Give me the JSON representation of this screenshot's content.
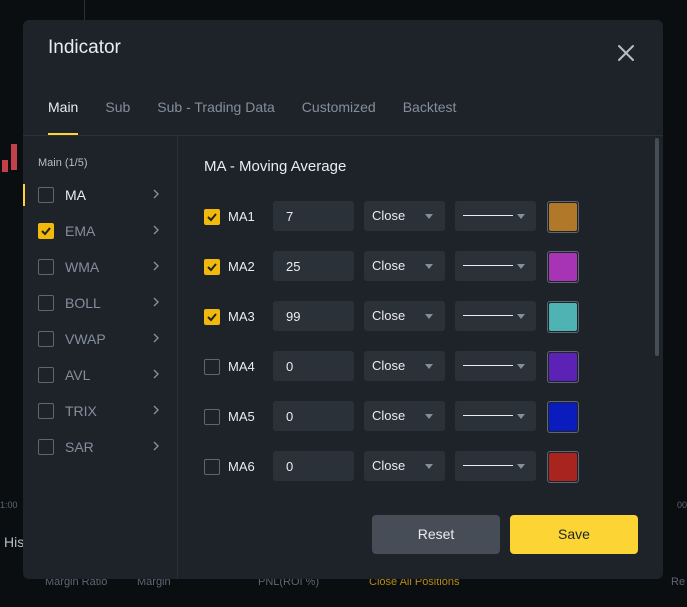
{
  "background": {
    "time_left": "1:00",
    "time_right": "00",
    "his_label": "His",
    "footer": {
      "margin_ratio": "Margin Ratio",
      "margin": "Margin",
      "pnl": "PNL(ROI %)",
      "close_all": "Close All Positions",
      "re": "Re"
    }
  },
  "modal": {
    "title": "Indicator",
    "close_icon": "close-icon"
  },
  "tabs": [
    {
      "label": "Main"
    },
    {
      "label": "Sub"
    },
    {
      "label": "Sub - Trading Data"
    },
    {
      "label": "Customized"
    },
    {
      "label": "Backtest"
    }
  ],
  "indicator_list": {
    "group_label": "Main (1/5)",
    "items": [
      {
        "label": "MA",
        "checked": false,
        "active": true
      },
      {
        "label": "EMA",
        "checked": true,
        "active": false
      },
      {
        "label": "WMA",
        "checked": false,
        "active": false
      },
      {
        "label": "BOLL",
        "checked": false,
        "active": false
      },
      {
        "label": "VWAP",
        "checked": false,
        "active": false
      },
      {
        "label": "AVL",
        "checked": false,
        "active": false
      },
      {
        "label": "TRIX",
        "checked": false,
        "active": false
      },
      {
        "label": "SAR",
        "checked": false,
        "active": false
      }
    ]
  },
  "settings": {
    "title": "MA - Moving Average",
    "rows": [
      {
        "name": "MA1",
        "checked": true,
        "period": "7",
        "source": "Close",
        "color": "#b07828"
      },
      {
        "name": "MA2",
        "checked": true,
        "period": "25",
        "source": "Close",
        "color": "#a634b4"
      },
      {
        "name": "MA3",
        "checked": true,
        "period": "99",
        "source": "Close",
        "color": "#4fb3b3"
      },
      {
        "name": "MA4",
        "checked": false,
        "period": "0",
        "source": "Close",
        "color": "#5c22b6"
      },
      {
        "name": "MA5",
        "checked": false,
        "period": "0",
        "source": "Close",
        "color": "#0a1cbd"
      },
      {
        "name": "MA6",
        "checked": false,
        "period": "0",
        "source": "Close",
        "color": "#a8241e"
      }
    ]
  },
  "buttons": {
    "reset": "Reset",
    "save": "Save"
  },
  "colors": {
    "accent": "#fcd535",
    "checkbox": "#f0b90b",
    "modal_bg": "#1e2329",
    "field_bg": "#2b3139"
  }
}
